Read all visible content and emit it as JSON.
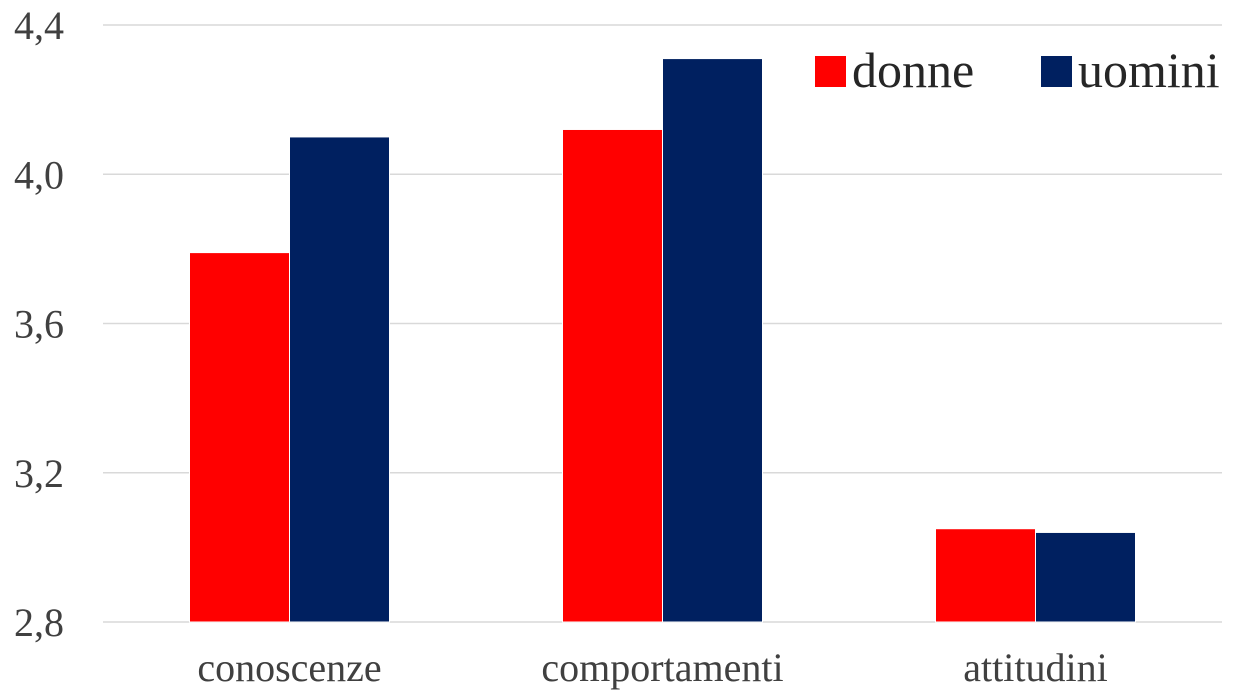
{
  "chart_data": {
    "type": "bar",
    "title": "",
    "xlabel": "",
    "ylabel": "",
    "categories": [
      "conoscenze",
      "comportamenti",
      "attitudini"
    ],
    "series": [
      {
        "name": "donne",
        "color": "#ff0000",
        "values": [
          3.79,
          4.12,
          3.05
        ]
      },
      {
        "name": "uomini",
        "color": "#002060",
        "values": [
          4.1,
          4.31,
          3.04
        ]
      }
    ],
    "ylim": [
      2.8,
      4.4
    ],
    "yticks": [
      "2,8",
      "3,2",
      "3,6",
      "4,0",
      "4,4"
    ],
    "ytick_values": [
      2.8,
      3.2,
      3.6,
      4.0,
      4.4
    ],
    "grid": "horizontal",
    "legend_position": "top-right"
  }
}
